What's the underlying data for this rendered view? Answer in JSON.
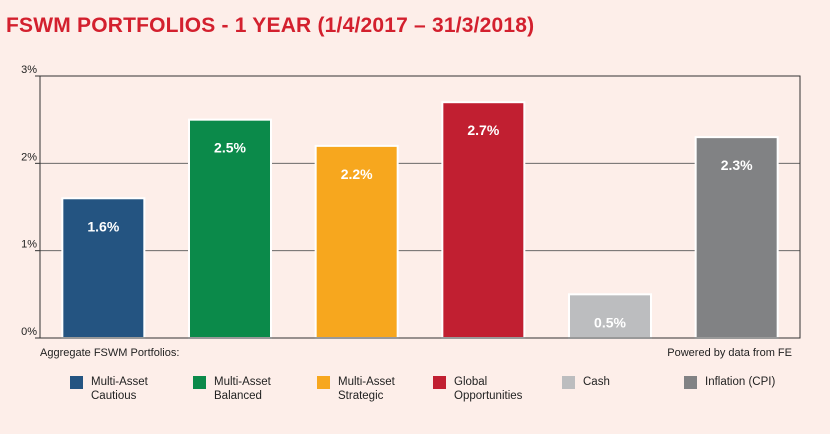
{
  "title": "FSWM PORTFOLIOS - 1 YEAR (1/4/2017 – 31/3/2018)",
  "footer": {
    "left": "Aggregate FSWM Portfolios:",
    "right": "Powered by data from FE"
  },
  "colors": {
    "background": "#fdeee9",
    "title": "#d3202e",
    "axis": "#333333",
    "grid": "#555555",
    "bar_label": "#ffffff"
  },
  "chart_data": {
    "type": "bar",
    "title": "FSWM PORTFOLIOS - 1 YEAR (1/4/2017 – 31/3/2018)",
    "xlabel": "",
    "ylabel": "",
    "ylim": [
      0,
      3
    ],
    "yticks": [
      0,
      1,
      2,
      3
    ],
    "ytick_labels": [
      "0%",
      "1%",
      "2%",
      "3%"
    ],
    "grid": true,
    "legend_position": "bottom",
    "categories": [
      "Multi-Asset Cautious",
      "Multi-Asset Balanced",
      "Multi-Asset Strategic",
      "Global Opportunities",
      "Cash",
      "Inflation (CPI)"
    ],
    "values": [
      1.6,
      2.5,
      2.2,
      2.7,
      0.5,
      2.3
    ],
    "data_labels": [
      "1.6%",
      "2.5%",
      "2.2%",
      "2.7%",
      "0.5%",
      "2.3%"
    ],
    "bar_colors": [
      "#245481",
      "#0b8a4a",
      "#f7a71e",
      "#c11f31",
      "#bcbdbf",
      "#818284"
    ],
    "legend": [
      {
        "label": "Multi-Asset\nCautious",
        "color": "#245481"
      },
      {
        "label": "Multi-Asset\nBalanced",
        "color": "#0b8a4a"
      },
      {
        "label": "Multi-Asset\nStrategic",
        "color": "#f7a71e"
      },
      {
        "label": "Global\nOpportunities",
        "color": "#c11f31"
      },
      {
        "label": "Cash",
        "color": "#bcbdbf"
      },
      {
        "label": "Inflation (CPI)",
        "color": "#818284"
      }
    ]
  }
}
